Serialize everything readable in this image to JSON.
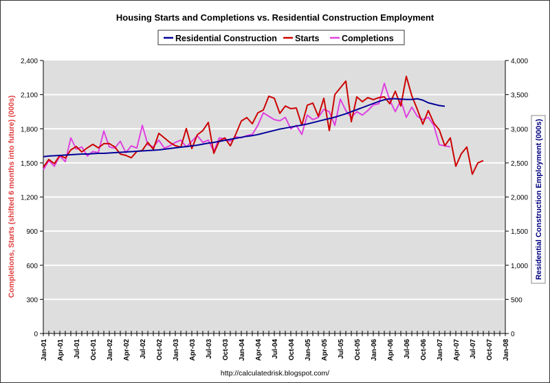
{
  "chart_data": {
    "type": "line",
    "title": "Housing Starts and Completions vs. Residential Construction Employment",
    "footer": "http://calculatedrisk.blogspot.com/",
    "ylabel_left": "Completions, Starts (shifted 6 months into future) (000s)",
    "ylabel_right": "Residential Construction Employment (000s)",
    "ylim_left": [
      0,
      2400
    ],
    "ylim_right": [
      0,
      4000
    ],
    "yticks_left": [
      "0",
      "300",
      "600",
      "900",
      "1,200",
      "1,500",
      "1,800",
      "2,100",
      "2,400"
    ],
    "yticks_right": [
      "0",
      "500",
      "1,000",
      "1,500",
      "2,000",
      "2,500",
      "3,000",
      "3,500",
      "4,000"
    ],
    "xticks": [
      "Jan-01",
      "Apr-01",
      "Jul-01",
      "Oct-01",
      "Jan-02",
      "Apr-02",
      "Jul-02",
      "Oct-02",
      "Jan-03",
      "Apr-03",
      "Jul-03",
      "Oct-03",
      "Jan-04",
      "Apr-04",
      "Jul-04",
      "Oct-04",
      "Jan-05",
      "Apr-05",
      "Jul-05",
      "Oct-05",
      "Jan-06",
      "Apr-06",
      "Jul-06",
      "Oct-06",
      "Jan-07",
      "Apr-07",
      "Jul-07",
      "Oct-07",
      "Jan-08"
    ],
    "x_start": "Jan-01",
    "x_end": "Jan-08",
    "x_interval": "monthly",
    "grid": true,
    "legend_position": "top",
    "colors": {
      "plot_bg": "#dedede",
      "grid": "#ffffff",
      "left_axis_label": "#e04040",
      "right_axis_label": "#000080"
    },
    "series": [
      {
        "name": "Residential Construction",
        "axis": "right",
        "color": "#000099",
        "start": "Jan-01",
        "values": [
          2590,
          2600,
          2605,
          2610,
          2615,
          2620,
          2625,
          2630,
          2630,
          2635,
          2640,
          2640,
          2645,
          2650,
          2655,
          2660,
          2665,
          2670,
          2675,
          2680,
          2685,
          2690,
          2700,
          2710,
          2720,
          2730,
          2740,
          2750,
          2760,
          2775,
          2790,
          2800,
          2815,
          2830,
          2845,
          2860,
          2875,
          2890,
          2900,
          2915,
          2935,
          2955,
          2975,
          2995,
          3010,
          3025,
          3040,
          3055,
          3070,
          3090,
          3110,
          3130,
          3150,
          3170,
          3195,
          3220,
          3250,
          3280,
          3310,
          3340,
          3370,
          3400,
          3425,
          3440,
          3440,
          3435,
          3430,
          3430,
          3440,
          3420,
          3380,
          3360,
          3340,
          3330
        ]
      },
      {
        "name": "Starts",
        "axis": "left",
        "color": "#cc0000",
        "start": "Jan-01",
        "values": [
          1463,
          1530,
          1493,
          1566,
          1542,
          1614,
          1644,
          1596,
          1632,
          1663,
          1632,
          1669,
          1670,
          1640,
          1578,
          1566,
          1545,
          1600,
          1610,
          1680,
          1620,
          1760,
          1720,
          1680,
          1651,
          1638,
          1802,
          1626,
          1747,
          1784,
          1856,
          1584,
          1693,
          1720,
          1650,
          1753,
          1868,
          1898,
          1844,
          1940,
          1965,
          2086,
          2068,
          1935,
          2000,
          1977,
          1983,
          1830,
          2007,
          2026,
          1910,
          2068,
          1784,
          2100,
          2160,
          2219,
          1862,
          2080,
          2038,
          2074,
          2056,
          2074,
          2080,
          2020,
          2130,
          2000,
          2261,
          2090,
          1970,
          1840,
          1960,
          1850,
          1790,
          1650,
          1720,
          1470,
          1580,
          1640,
          1400,
          1500,
          1520
        ]
      },
      {
        "name": "Completions",
        "axis": "left",
        "color": "#e040e0",
        "start": "Jan-01",
        "values": [
          1440,
          1520,
          1470,
          1560,
          1510,
          1720,
          1620,
          1640,
          1560,
          1600,
          1590,
          1780,
          1640,
          1630,
          1690,
          1590,
          1650,
          1630,
          1830,
          1660,
          1640,
          1700,
          1630,
          1650,
          1680,
          1700,
          1640,
          1690,
          1740,
          1680,
          1700,
          1600,
          1720,
          1710,
          1690,
          1730,
          1720,
          1740,
          1750,
          1830,
          1940,
          1910,
          1880,
          1870,
          1900,
          1800,
          1830,
          1750,
          1920,
          1880,
          1900,
          1970,
          1950,
          1830,
          2060,
          1960,
          1900,
          1950,
          1920,
          1960,
          2010,
          2020,
          2200,
          2050,
          1950,
          2050,
          1900,
          1990,
          1910,
          1880,
          1900,
          1830,
          1660,
          1650,
          1640
        ]
      }
    ]
  }
}
